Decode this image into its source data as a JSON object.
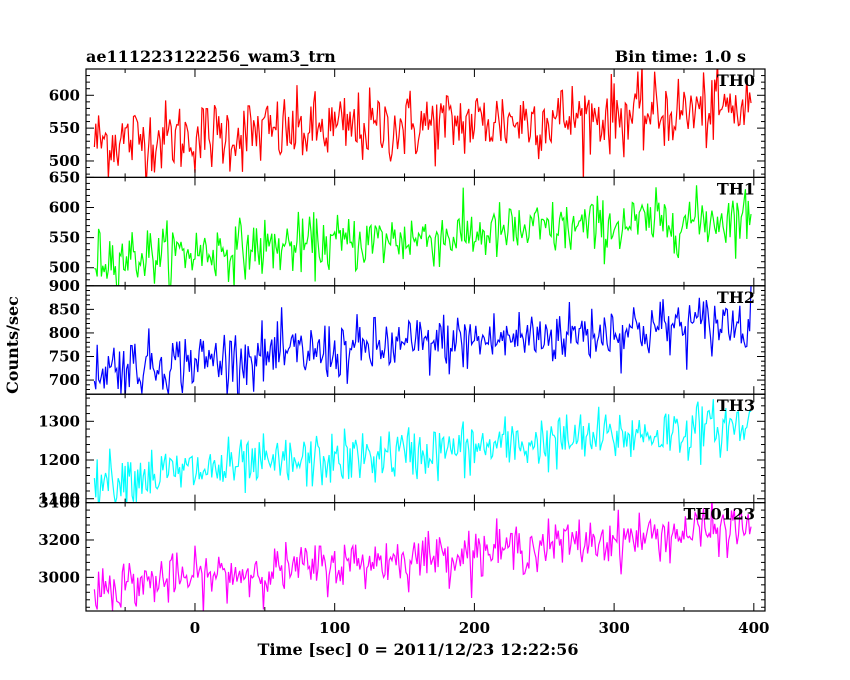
{
  "header": {
    "left_title": "ae111223122256_wam3_trn",
    "right_title": "Bin time: 1.0 s"
  },
  "chart_data": {
    "type": "line",
    "xlabel": "Time [sec] 0 = 2011/12/23 12:22:56",
    "ylabel": "Counts/sec",
    "xlim": [
      -78,
      408
    ],
    "xticks": [
      0,
      100,
      200,
      300,
      400
    ],
    "grid": false,
    "panels": [
      {
        "name": "TH0",
        "color": "#ff0000",
        "ylim": [
          475,
          640
        ],
        "yticks": [
          500,
          550,
          600
        ],
        "ytick_labels": [
          "500",
          "550",
          "600"
        ],
        "series_start": 530,
        "series_end": 580,
        "noise": 28
      },
      {
        "name": "TH1",
        "color": "#00ff00",
        "ylim": [
          470,
          650
        ],
        "yticks": [
          500,
          550,
          600,
          650
        ],
        "ytick_labels": [
          "500",
          "550",
          "600",
          "650"
        ],
        "series_start": 515,
        "series_end": 585,
        "noise": 24
      },
      {
        "name": "TH2",
        "color": "#0000ff",
        "ylim": [
          670,
          900
        ],
        "yticks": [
          700,
          750,
          800,
          850,
          900
        ],
        "ytick_labels": [
          "700",
          "750",
          "800",
          "850",
          "900"
        ],
        "series_start": 725,
        "series_end": 825,
        "noise": 32
      },
      {
        "name": "TH3",
        "color": "#00ffff",
        "ylim": [
          1090,
          1370
        ],
        "yticks": [
          1100,
          1200,
          1300
        ],
        "ytick_labels": [
          "1100",
          "1200",
          "1300"
        ],
        "series_start": 1150,
        "series_end": 1290,
        "noise": 35
      },
      {
        "name": "TH0123",
        "color": "#ff00ff",
        "ylim": [
          2820,
          3400
        ],
        "yticks": [
          3000,
          3200,
          3400
        ],
        "ytick_labels": [
          "3000",
          "3200",
          "3400"
        ],
        "series_start": 2950,
        "series_end": 3270,
        "noise": 65
      }
    ]
  }
}
